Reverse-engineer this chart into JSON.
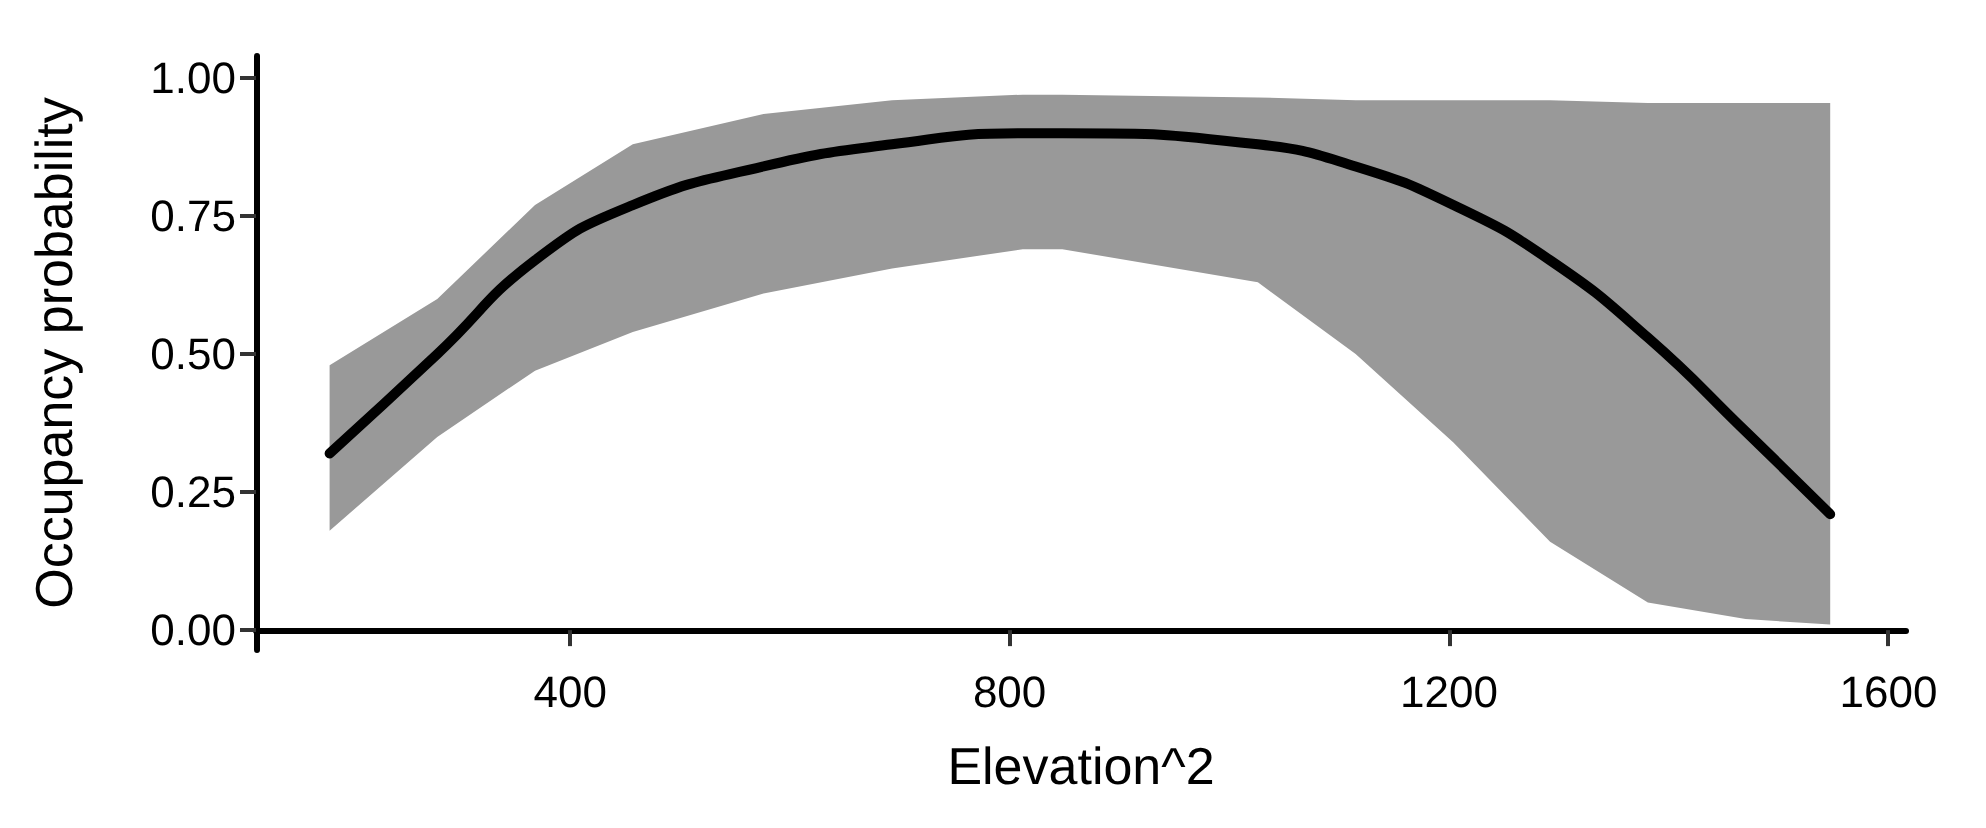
{
  "chart_data": {
    "type": "line",
    "xlabel": "Elevation^2",
    "ylabel": "Occupancy probability",
    "x": [
      181,
      279,
      368,
      457,
      576,
      693,
      812,
      848,
      1026,
      1115,
      1204,
      1292,
      1381,
      1470,
      1547
    ],
    "series": [
      {
        "color": "#000000",
        "values": [
          0.32,
          0.5,
          0.67,
          0.77,
          0.84,
          0.88,
          0.9,
          0.9,
          0.88,
          0.84,
          0.77,
          0.67,
          0.53,
          0.36,
          0.21
        ],
        "lower": [
          0.18,
          0.35,
          0.47,
          0.54,
          0.61,
          0.655,
          0.69,
          0.69,
          0.63,
          0.5,
          0.34,
          0.16,
          0.05,
          0.02,
          0.01
        ],
        "upper": [
          0.48,
          0.6,
          0.77,
          0.88,
          0.935,
          0.96,
          0.97,
          0.97,
          0.965,
          0.96,
          0.96,
          0.96,
          0.955,
          0.955,
          0.955
        ]
      }
    ],
    "xlim": [
      114,
      1616
    ],
    "xticks": [
      400,
      800,
      1200,
      1600
    ],
    "ylim": [
      -0.036,
      1.04
    ],
    "yticks": [
      {
        "value": 0,
        "label": "0.00"
      },
      {
        "value": 0.25,
        "label": "0.25"
      },
      {
        "value": 0.5,
        "label": "0.50"
      },
      {
        "value": 0.75,
        "label": "0.75"
      },
      {
        "value": 1,
        "label": "1.00"
      }
    ],
    "grid": false,
    "marker": "none",
    "line_style": "solid"
  }
}
